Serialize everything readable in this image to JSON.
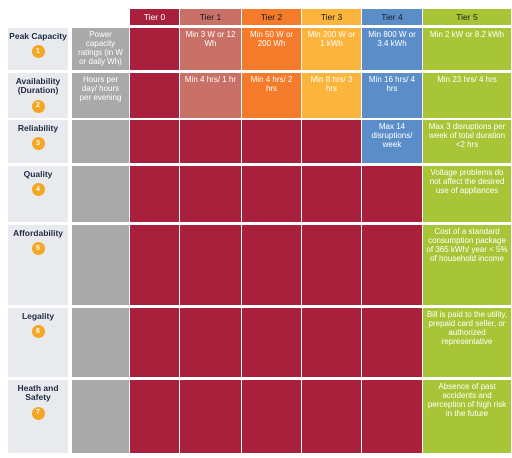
{
  "colors": {
    "label_bg": "#e8eaee",
    "capacity_desc_bg": "#a9a9a9",
    "tier0": "#a8203b",
    "tier1": "#c97167",
    "tier2": "#f47b2a",
    "tier3": "#fbb53c",
    "tier4": "#5b8ec9",
    "tier5": "#a8c537",
    "badge": "#f5a623"
  },
  "headers": [
    "Tier 0",
    "Tier 1",
    "Tier 2",
    "Tier 3",
    "Tier 4",
    "Tier 5"
  ],
  "rows": [
    {
      "label": "Peak Capacity",
      "number": "1",
      "desc": "Power capacity ratings (in W or daily Wh)",
      "cells": [
        "",
        "Min 3 W or 12 Wh",
        "Min 50 W or 200 Wh",
        "Min 200 W or 1 kWh",
        "Min 800 W or 3.4 kWh",
        "Min 2 kW or 8.2 kWh"
      ]
    },
    {
      "label": "Availability (Duration)",
      "number": "2",
      "desc": "Hours per day/ hours per evening",
      "cells": [
        "",
        "Min 4 hrs/ 1 hr",
        "Min 4 hrs/ 2 hrs",
        "Min 8 hrs/ 3 hrs",
        "Min 16 hrs/ 4 hrs",
        "Min 23 hrs/ 4 hrs"
      ]
    },
    {
      "label": "Reliability",
      "number": "3",
      "desc": "",
      "cells": [
        "",
        "",
        "",
        "",
        "Max 14 disruptions/ week",
        "Max 3 disruptions per week of total duration <2 hrs"
      ]
    },
    {
      "label": "Quality",
      "number": "4",
      "desc": "",
      "cells": [
        "",
        "",
        "",
        "",
        "",
        "Voltage problems do not affect the desired use of appliances"
      ]
    },
    {
      "label": "Affordability",
      "number": "5",
      "desc": "",
      "cells": [
        "",
        "",
        "",
        "",
        "",
        "Cost of a standard consumption package of 365 kWh/ year < 5% of household income"
      ]
    },
    {
      "label": "Legality",
      "number": "6",
      "desc": "",
      "cells": [
        "",
        "",
        "",
        "",
        "",
        "Bill is paid to the utility, prepaid card seller, or authorized representative"
      ]
    },
    {
      "label": "Heath and Safety",
      "number": "7",
      "desc": "",
      "cells": [
        "",
        "",
        "",
        "",
        "",
        "Absence of past accidents and perception of high risk in the future"
      ]
    }
  ]
}
